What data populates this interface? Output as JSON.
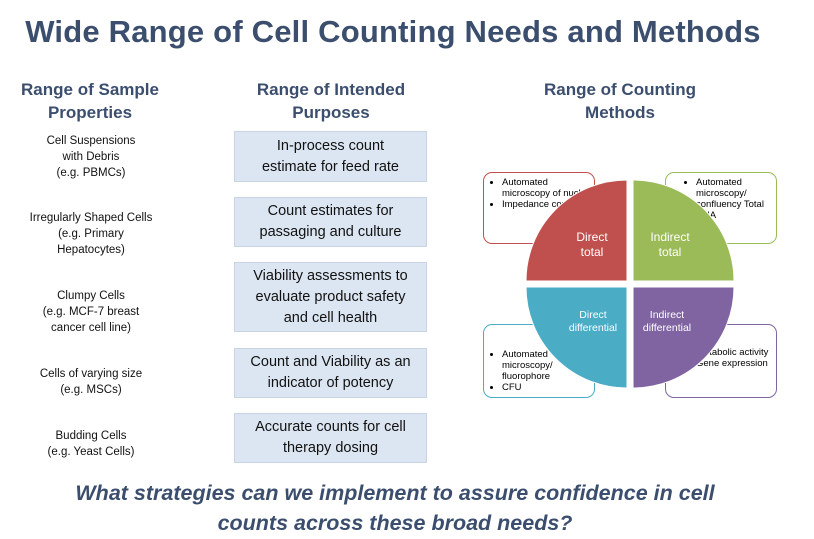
{
  "title": "Wide Range of Cell Counting Needs and Methods",
  "columns": {
    "samples_heading": "Range of Sample\nProperties",
    "purposes_heading": "Range of Intended\nPurposes",
    "methods_heading": "Range of Counting\nMethods"
  },
  "samples": [
    "Cell Suspensions\nwith Debris\n(e.g. PBMCs)",
    "Irregularly Shaped Cells\n(e.g. Primary\nHepatocytes)",
    "Clumpy Cells\n(e.g. MCF-7 breast\ncancer cell line)",
    "Cells of varying size\n(e.g. MSCs)",
    "Budding Cells\n(e.g. Yeast Cells)"
  ],
  "purposes": [
    "In-process count\nestimate for feed rate",
    "Count estimates for\npassaging and culture",
    "Viability assessments to\nevaluate product safety\nand cell health",
    "Count and Viability as an\nindicator of potency",
    "Accurate counts for cell\ntherapy dosing"
  ],
  "methods": {
    "quadrants": {
      "direct_total": "Direct\ntotal",
      "indirect_total": "Indirect\ntotal",
      "direct_differential": "Direct\ndifferential",
      "indirect_differential": "Indirect\ndifferential"
    },
    "boxes": {
      "direct_total": [
        "Automated microscopy of nuclei",
        "Impedance counting"
      ],
      "indirect_total": [
        "Automated microscopy/ confluency Total DNA"
      ],
      "direct_differential": [
        "Automated microscopy/ fluorophore",
        "CFU"
      ],
      "indirect_differential": [
        "Metabolic activity",
        "Gene expression"
      ]
    },
    "colors": {
      "direct_total": "#c0504d",
      "indirect_total": "#9bbb59",
      "direct_differential": "#4bacc6",
      "indirect_differential": "#8064a2"
    }
  },
  "question": "What strategies can we implement to assure confidence in cell\ncounts across these broad needs?"
}
